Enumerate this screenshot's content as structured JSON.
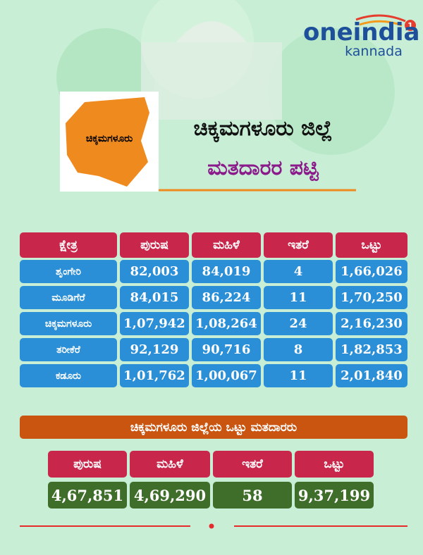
{
  "header": {
    "brand": "oneindia",
    "brand_sub": "kannada",
    "badge": "1",
    "map_label": "ಚಿಕ್ಕಮಗಳೂರು",
    "title_line1": "ಚಿಕ್ಕಮಗಳೂರು ಜಿಲ್ಲೆ",
    "title_line2": "ಮತದಾರರ ಪಟ್ಟಿ"
  },
  "table": {
    "columns": [
      "ಕ್ಷೇತ್ರ",
      "ಪುರುಷ",
      "ಮಹಿಳೆ",
      "ಇತರೆ",
      "ಒಟ್ಟು"
    ],
    "rows": [
      [
        "ಶೃಂಗೇರಿ",
        "82,003",
        "84,019",
        "4",
        "1,66,026"
      ],
      [
        "ಮೂಡಿಗೆರೆ",
        "84,015",
        "86,224",
        "11",
        "1,70,250"
      ],
      [
        "ಚಿಕ್ಕಮಗಳೂರು",
        "1,07,942",
        "1,08,264",
        "24",
        "2,16,230"
      ],
      [
        "ತರೀಕೆರೆ",
        "92,129",
        "90,716",
        "8",
        "1,82,853"
      ],
      [
        "ಕಡೂರು",
        "1,01,762",
        "1,00,067",
        "11",
        "2,01,840"
      ]
    ]
  },
  "summary": {
    "title": "ಚಿಕ್ಕಮಗಳೂರು ಜಿಲ್ಲೆಯ ಒಟ್ಟು ಮತದಾರರು",
    "columns": [
      "ಪುರುಷ",
      "ಮಹಿಳೆ",
      "ಇತರೆ",
      "ಒಟ್ಟು"
    ],
    "values": [
      "4,67,851",
      "4,69,290",
      "58",
      "9,37,199"
    ]
  }
}
